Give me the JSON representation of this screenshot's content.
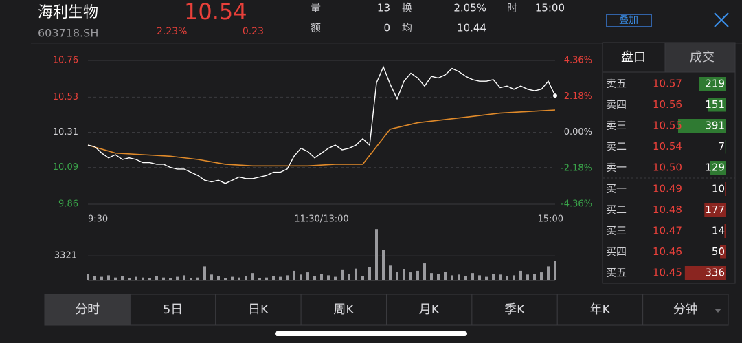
{
  "header": {
    "name": "海利生物",
    "code": "603718.SH",
    "price": 10.54,
    "change_pct": "2.23%",
    "change": 0.23,
    "stats": [
      {
        "label": "量",
        "value": 13
      },
      {
        "label": "额",
        "value": 0
      },
      {
        "label": "换",
        "value": "2.05%"
      },
      {
        "label": "均",
        "value": 10.44
      },
      {
        "label": "时",
        "value": "15:00"
      }
    ],
    "overlay_button": "叠加"
  },
  "chart": {
    "ylim": [
      9.86,
      10.76
    ],
    "yticks": [
      10.76,
      10.53,
      10.31,
      10.09,
      9.86
    ],
    "y2lim": [
      -4.36,
      4.36
    ],
    "y2ticks": [
      {
        "value": 4.36,
        "label": "4.36%"
      },
      {
        "value": 2.18,
        "label": "2.18%"
      },
      {
        "value": 0,
        "label": "0.00%"
      },
      {
        "value": -2.18,
        "label": "-2.18%"
      },
      {
        "value": -4.36,
        "label": "-4.36%"
      }
    ],
    "xticks": [
      "9:30",
      "11:30/13:00",
      "15:00"
    ],
    "price": [
      10.23,
      10.22,
      10.18,
      10.15,
      10.17,
      10.14,
      10.15,
      10.14,
      10.12,
      10.12,
      10.11,
      10.11,
      10.09,
      10.08,
      10.08,
      10.06,
      10.04,
      10.01,
      10.0,
      10.01,
      9.99,
      10.01,
      10.03,
      10.02,
      10.02,
      10.03,
      10.04,
      10.06,
      10.06,
      10.08,
      10.16,
      10.21,
      10.19,
      10.15,
      10.18,
      10.21,
      10.23,
      10.2,
      10.21,
      10.23,
      10.27,
      10.23,
      10.62,
      10.72,
      10.61,
      10.52,
      10.63,
      10.68,
      10.65,
      10.6,
      10.66,
      10.65,
      10.67,
      10.71,
      10.69,
      10.66,
      10.64,
      10.63,
      10.63,
      10.64,
      10.59,
      10.6,
      10.58,
      10.6,
      10.58,
      10.57,
      10.58,
      10.63,
      10.54
    ],
    "avg": [
      10.23,
      10.18,
      10.17,
      10.16,
      10.14,
      10.11,
      10.1,
      10.1,
      10.1,
      10.11,
      10.11,
      10.33,
      10.37,
      10.39,
      10.41,
      10.43,
      10.44,
      10.45
    ],
    "volume_label": 3321,
    "volume": [
      900,
      600,
      500,
      700,
      400,
      600,
      300,
      500,
      400,
      300,
      600,
      400,
      300,
      500,
      700,
      300,
      400,
      1900,
      800,
      600,
      300,
      500,
      400,
      600,
      1000,
      300,
      400,
      600,
      500,
      700,
      1300,
      800,
      1100,
      600,
      900,
      700,
      500,
      1400,
      900,
      1600,
      600,
      1800,
      6900,
      4100,
      2000,
      1200,
      1500,
      1100,
      1300,
      2300,
      1000,
      900,
      1200,
      700,
      800,
      600,
      1000,
      700,
      500,
      900,
      800,
      600,
      700,
      1300,
      800,
      900,
      1100,
      1900,
      2600
    ]
  },
  "order_book": {
    "tabs": [
      "盘口",
      "成交"
    ],
    "asks": [
      {
        "label": "卖五",
        "price": "10.57",
        "volume": 219
      },
      {
        "label": "卖四",
        "price": "10.56",
        "volume": 151
      },
      {
        "label": "卖三",
        "price": "10.55",
        "volume": 391
      },
      {
        "label": "卖二",
        "price": "10.54",
        "volume": 7
      },
      {
        "label": "卖一",
        "price": "10.50",
        "volume": 129
      }
    ],
    "bids": [
      {
        "label": "买一",
        "price": "10.49",
        "volume": 10
      },
      {
        "label": "买二",
        "price": "10.48",
        "volume": 177
      },
      {
        "label": "买三",
        "price": "10.47",
        "volume": 14
      },
      {
        "label": "买四",
        "price": "10.46",
        "volume": 50
      },
      {
        "label": "买五",
        "price": "10.45",
        "volume": 336
      }
    ]
  },
  "period_tabs": [
    "分时",
    "5日",
    "日K",
    "周K",
    "月K",
    "季K",
    "年K",
    "分钟"
  ]
}
